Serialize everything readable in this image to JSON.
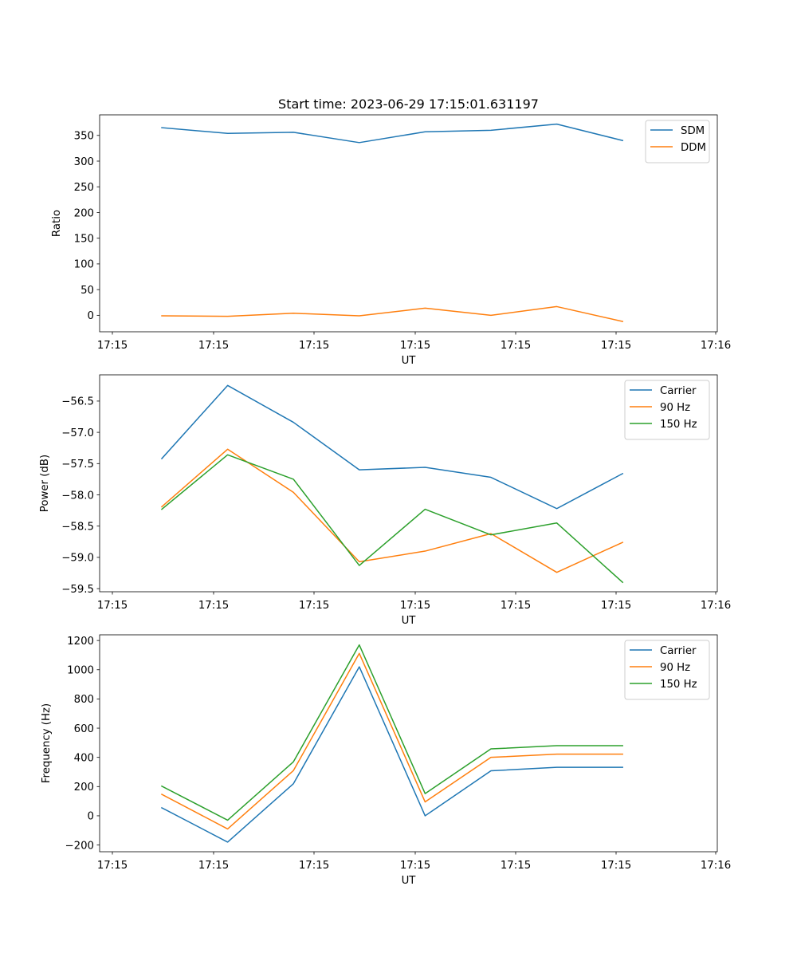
{
  "title": "Start time: 2023-06-29 17:15:01.631197",
  "colors": {
    "blue": "#1f77b4",
    "orange": "#ff7f0e",
    "green": "#2ca02c"
  },
  "chart_data": [
    {
      "type": "line",
      "xlabel": "UT",
      "ylabel": "Ratio",
      "x_tick_labels": [
        "17:15",
        "17:15",
        "17:15",
        "17:15",
        "17:15",
        "17:15",
        "17:16"
      ],
      "y_ticks": [
        0,
        50,
        100,
        150,
        200,
        250,
        300,
        350
      ],
      "ylim": [
        -32,
        390
      ],
      "legend": "top-right",
      "grid": false,
      "series": [
        {
          "name": "SDM",
          "color": "#1f77b4",
          "values": [
            365,
            354,
            356,
            336,
            357,
            360,
            372,
            340
          ]
        },
        {
          "name": "DDM",
          "color": "#ff7f0e",
          "values": [
            -1,
            -2,
            4,
            -1,
            14,
            0,
            17,
            -12
          ]
        }
      ]
    },
    {
      "type": "line",
      "xlabel": "UT",
      "ylabel": "Power (dB)",
      "x_tick_labels": [
        "17:15",
        "17:15",
        "17:15",
        "17:15",
        "17:15",
        "17:15",
        "17:16"
      ],
      "y_ticks": [
        -59.5,
        -59.0,
        -58.5,
        -58.0,
        -57.5,
        -57.0,
        -56.5
      ],
      "y_tick_labels": [
        "−59.5",
        "−59.0",
        "−58.5",
        "−58.0",
        "−57.5",
        "−57.0",
        "−56.5"
      ],
      "ylim": [
        -59.55,
        -56.08
      ],
      "legend": "top-right",
      "grid": false,
      "series": [
        {
          "name": "Carrier",
          "color": "#1f77b4",
          "values": [
            -57.42,
            -56.25,
            -56.84,
            -57.6,
            -57.56,
            -57.72,
            -58.22,
            -57.66
          ]
        },
        {
          "name": "90 Hz",
          "color": "#ff7f0e",
          "values": [
            -58.19,
            -57.27,
            -57.96,
            -59.07,
            -58.9,
            -58.62,
            -59.24,
            -58.76
          ]
        },
        {
          "name": "150 Hz",
          "color": "#2ca02c",
          "values": [
            -58.23,
            -57.36,
            -57.75,
            -59.13,
            -58.23,
            -58.64,
            -58.45,
            -59.4
          ]
        }
      ]
    },
    {
      "type": "line",
      "xlabel": "UT",
      "ylabel": "Frequency (Hz)",
      "x_tick_labels": [
        "17:15",
        "17:15",
        "17:15",
        "17:15",
        "17:15",
        "17:15",
        "17:16"
      ],
      "y_ticks": [
        -200,
        0,
        200,
        400,
        600,
        800,
        1000,
        1200
      ],
      "y_tick_labels": [
        "−200",
        "0",
        "200",
        "400",
        "600",
        "800",
        "1000",
        "1200"
      ],
      "ylim": [
        -246,
        1239
      ],
      "legend": "top-right",
      "grid": false,
      "series": [
        {
          "name": "Carrier",
          "color": "#1f77b4",
          "values": [
            55,
            -180,
            220,
            1020,
            0,
            308,
            332,
            332
          ]
        },
        {
          "name": "90 Hz",
          "color": "#ff7f0e",
          "values": [
            147,
            -90,
            310,
            1112,
            95,
            400,
            422,
            422
          ]
        },
        {
          "name": "150 Hz",
          "color": "#2ca02c",
          "values": [
            203,
            -30,
            370,
            1170,
            152,
            458,
            480,
            480
          ]
        }
      ]
    }
  ]
}
